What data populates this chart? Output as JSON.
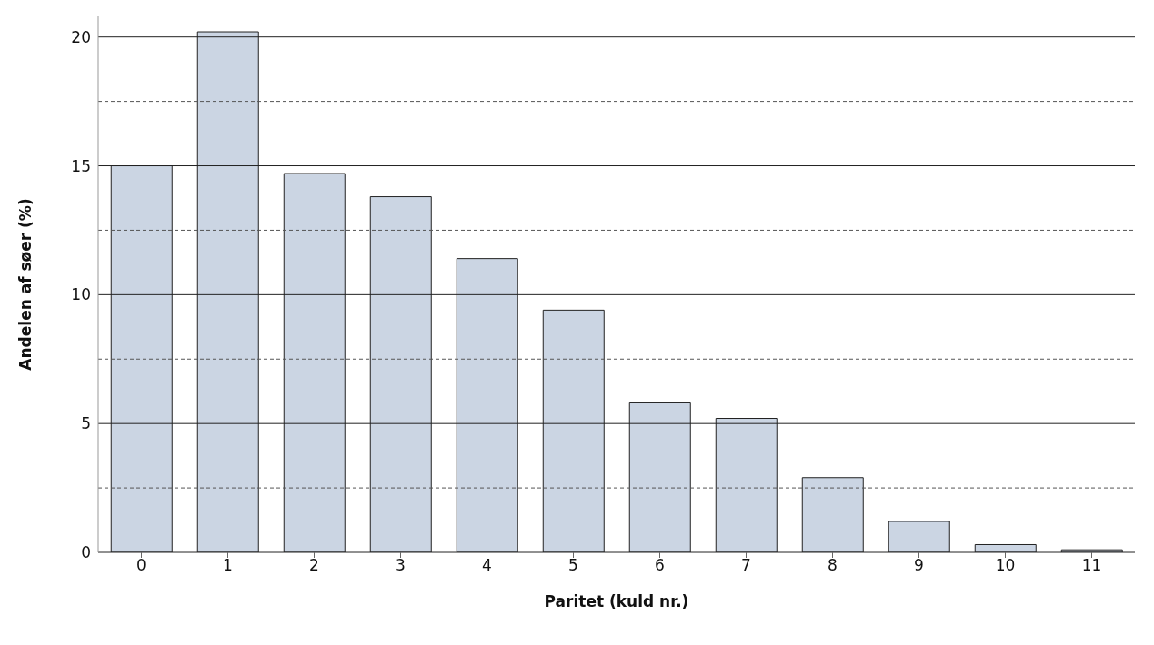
{
  "chart_data": {
    "type": "bar",
    "xlabel": "Paritet (kuld nr.)",
    "ylabel": "Andelen af søer (%)",
    "categories": [
      "0",
      "1",
      "2",
      "3",
      "4",
      "5",
      "6",
      "7",
      "8",
      "9",
      "10",
      "11"
    ],
    "values": [
      15.0,
      20.2,
      14.7,
      13.8,
      11.4,
      9.4,
      5.8,
      5.2,
      2.9,
      1.2,
      0.3,
      0.1
    ],
    "color": "#cbd5e3",
    "ylim": [
      0,
      20.8
    ],
    "yticks": [
      0,
      {
        "value": 2.5,
        "label": null
      },
      5,
      {
        "value": 7.5,
        "label": null
      },
      10,
      {
        "value": 12.5,
        "label": null
      },
      15,
      {
        "value": 17.5,
        "label": null
      },
      20
    ],
    "grid": "y"
  }
}
